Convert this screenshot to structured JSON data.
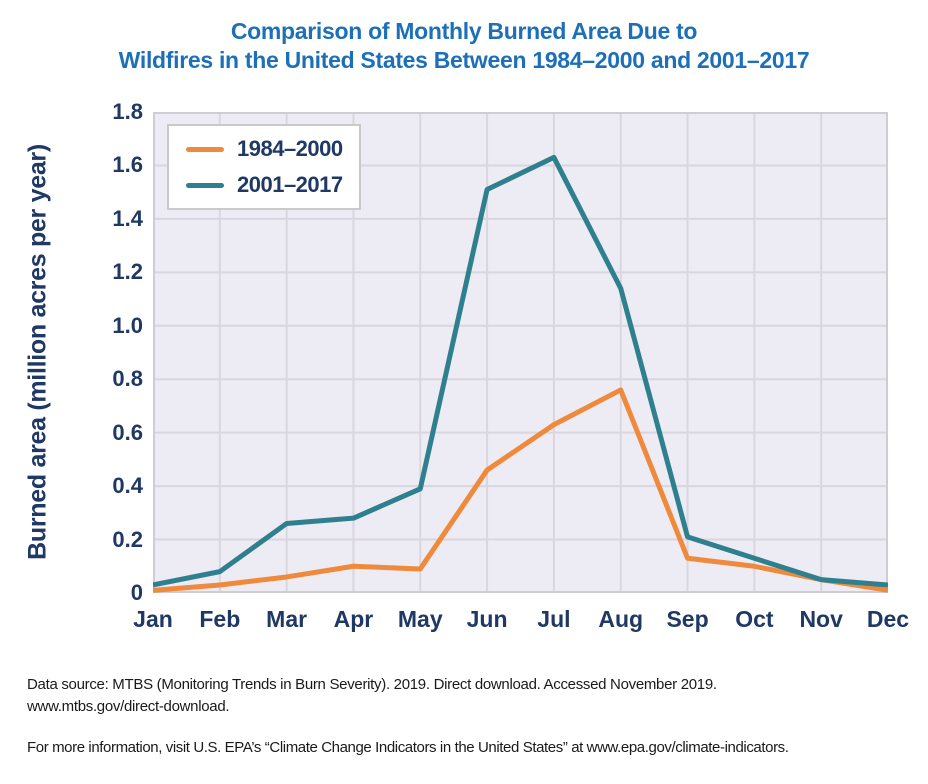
{
  "title": {
    "line1": "Comparison of Monthly Burned Area Due to",
    "line2": "Wildfires in the United States Between 1984–2000 and 2001–2017"
  },
  "chart_data": {
    "type": "line",
    "categories": [
      "Jan",
      "Feb",
      "Mar",
      "Apr",
      "May",
      "Jun",
      "Jul",
      "Aug",
      "Sep",
      "Oct",
      "Nov",
      "Dec"
    ],
    "series": [
      {
        "name": "1984–2000",
        "color": "#EF8A3D",
        "values": [
          0.01,
          0.03,
          0.06,
          0.1,
          0.09,
          0.46,
          0.63,
          0.76,
          0.13,
          0.1,
          0.05,
          0.01
        ]
      },
      {
        "name": "2001–2017",
        "color": "#2F808E",
        "values": [
          0.03,
          0.08,
          0.26,
          0.28,
          0.39,
          1.51,
          1.63,
          1.14,
          0.21,
          0.13,
          0.05,
          0.03
        ]
      }
    ],
    "xlabel": "",
    "ylabel": "Burned area (million acres per year)",
    "ylim": [
      0,
      1.8
    ],
    "yticks": [
      0,
      0.2,
      0.4,
      0.6,
      0.8,
      1.0,
      1.2,
      1.4,
      1.6,
      1.8
    ],
    "ytick_labels": [
      "0",
      "0.2",
      "0.4",
      "0.6",
      "0.8",
      "1.0",
      "1.2",
      "1.4",
      "1.6",
      "1.8"
    ],
    "grid": true,
    "legend_position": "inside-top-left"
  },
  "footer": {
    "source_line1": "Data source: MTBS (Monitoring Trends in Burn Severity). 2019. Direct download. Accessed November 2019.",
    "source_line2": "www.mtbs.gov/direct-download.",
    "info": "For more information, visit U.S. EPA’s “Climate Change Indicators in the United States” at www.epa.gov/climate-indicators."
  },
  "colors": {
    "title_text": "#1D70B8",
    "axis_text": "#1F3864",
    "plot_background": "#EDEBF3",
    "gridline": "#D9D6DE",
    "plot_border": "#CFCCD4",
    "legend_border": "#C9C9C9",
    "footer_text": "#1A1A1A"
  }
}
